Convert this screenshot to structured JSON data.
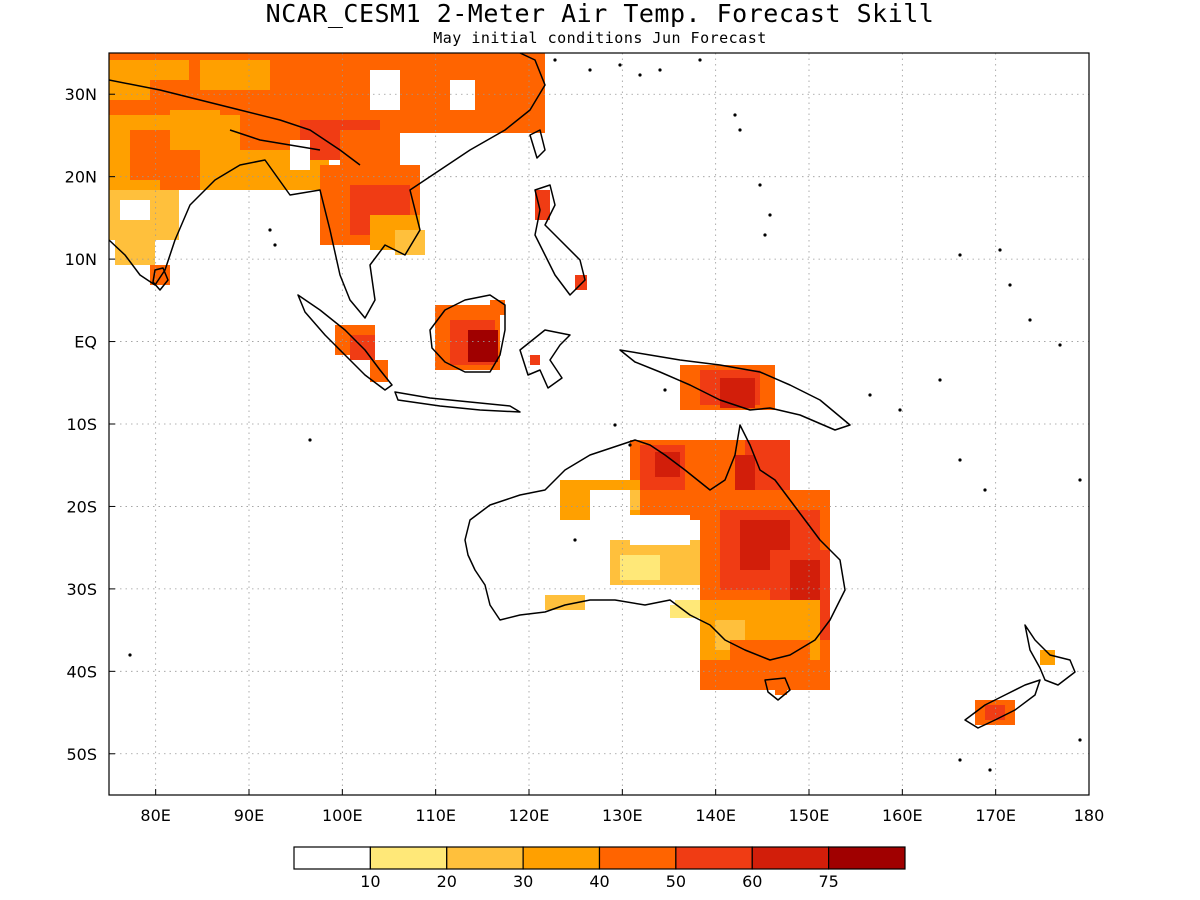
{
  "title": "NCAR_CESM1 2-Meter Air Temp. Forecast Skill",
  "subtitle": "May initial conditions  Jun Forecast",
  "map": {
    "lon_range": [
      75,
      180
    ],
    "lat_range": [
      -55,
      35
    ],
    "lon_ticks": [
      {
        "value": 80,
        "label": "80E"
      },
      {
        "value": 90,
        "label": "90E"
      },
      {
        "value": 100,
        "label": "100E"
      },
      {
        "value": 110,
        "label": "110E"
      },
      {
        "value": 120,
        "label": "120E"
      },
      {
        "value": 130,
        "label": "130E"
      },
      {
        "value": 140,
        "label": "140E"
      },
      {
        "value": 150,
        "label": "150E"
      },
      {
        "value": 160,
        "label": "160E"
      },
      {
        "value": 170,
        "label": "170E"
      },
      {
        "value": 180,
        "label": "180"
      }
    ],
    "lat_ticks": [
      {
        "value": 30,
        "label": "30N"
      },
      {
        "value": 20,
        "label": "20N"
      },
      {
        "value": 10,
        "label": "10N"
      },
      {
        "value": 0,
        "label": "EQ"
      },
      {
        "value": -10,
        "label": "10S"
      },
      {
        "value": -20,
        "label": "20S"
      },
      {
        "value": -30,
        "label": "30S"
      },
      {
        "value": -40,
        "label": "40S"
      },
      {
        "value": -50,
        "label": "50S"
      }
    ],
    "grid": "dotted"
  },
  "colorbar": {
    "colors": [
      "#ffffff",
      "#ffe878",
      "#ffc03c",
      "#ffa000",
      "#ff6400",
      "#f03c14",
      "#d21e0a",
      "#a00000"
    ],
    "labels": [
      "10",
      "20",
      "30",
      "40",
      "50",
      "60",
      "75"
    ]
  }
}
